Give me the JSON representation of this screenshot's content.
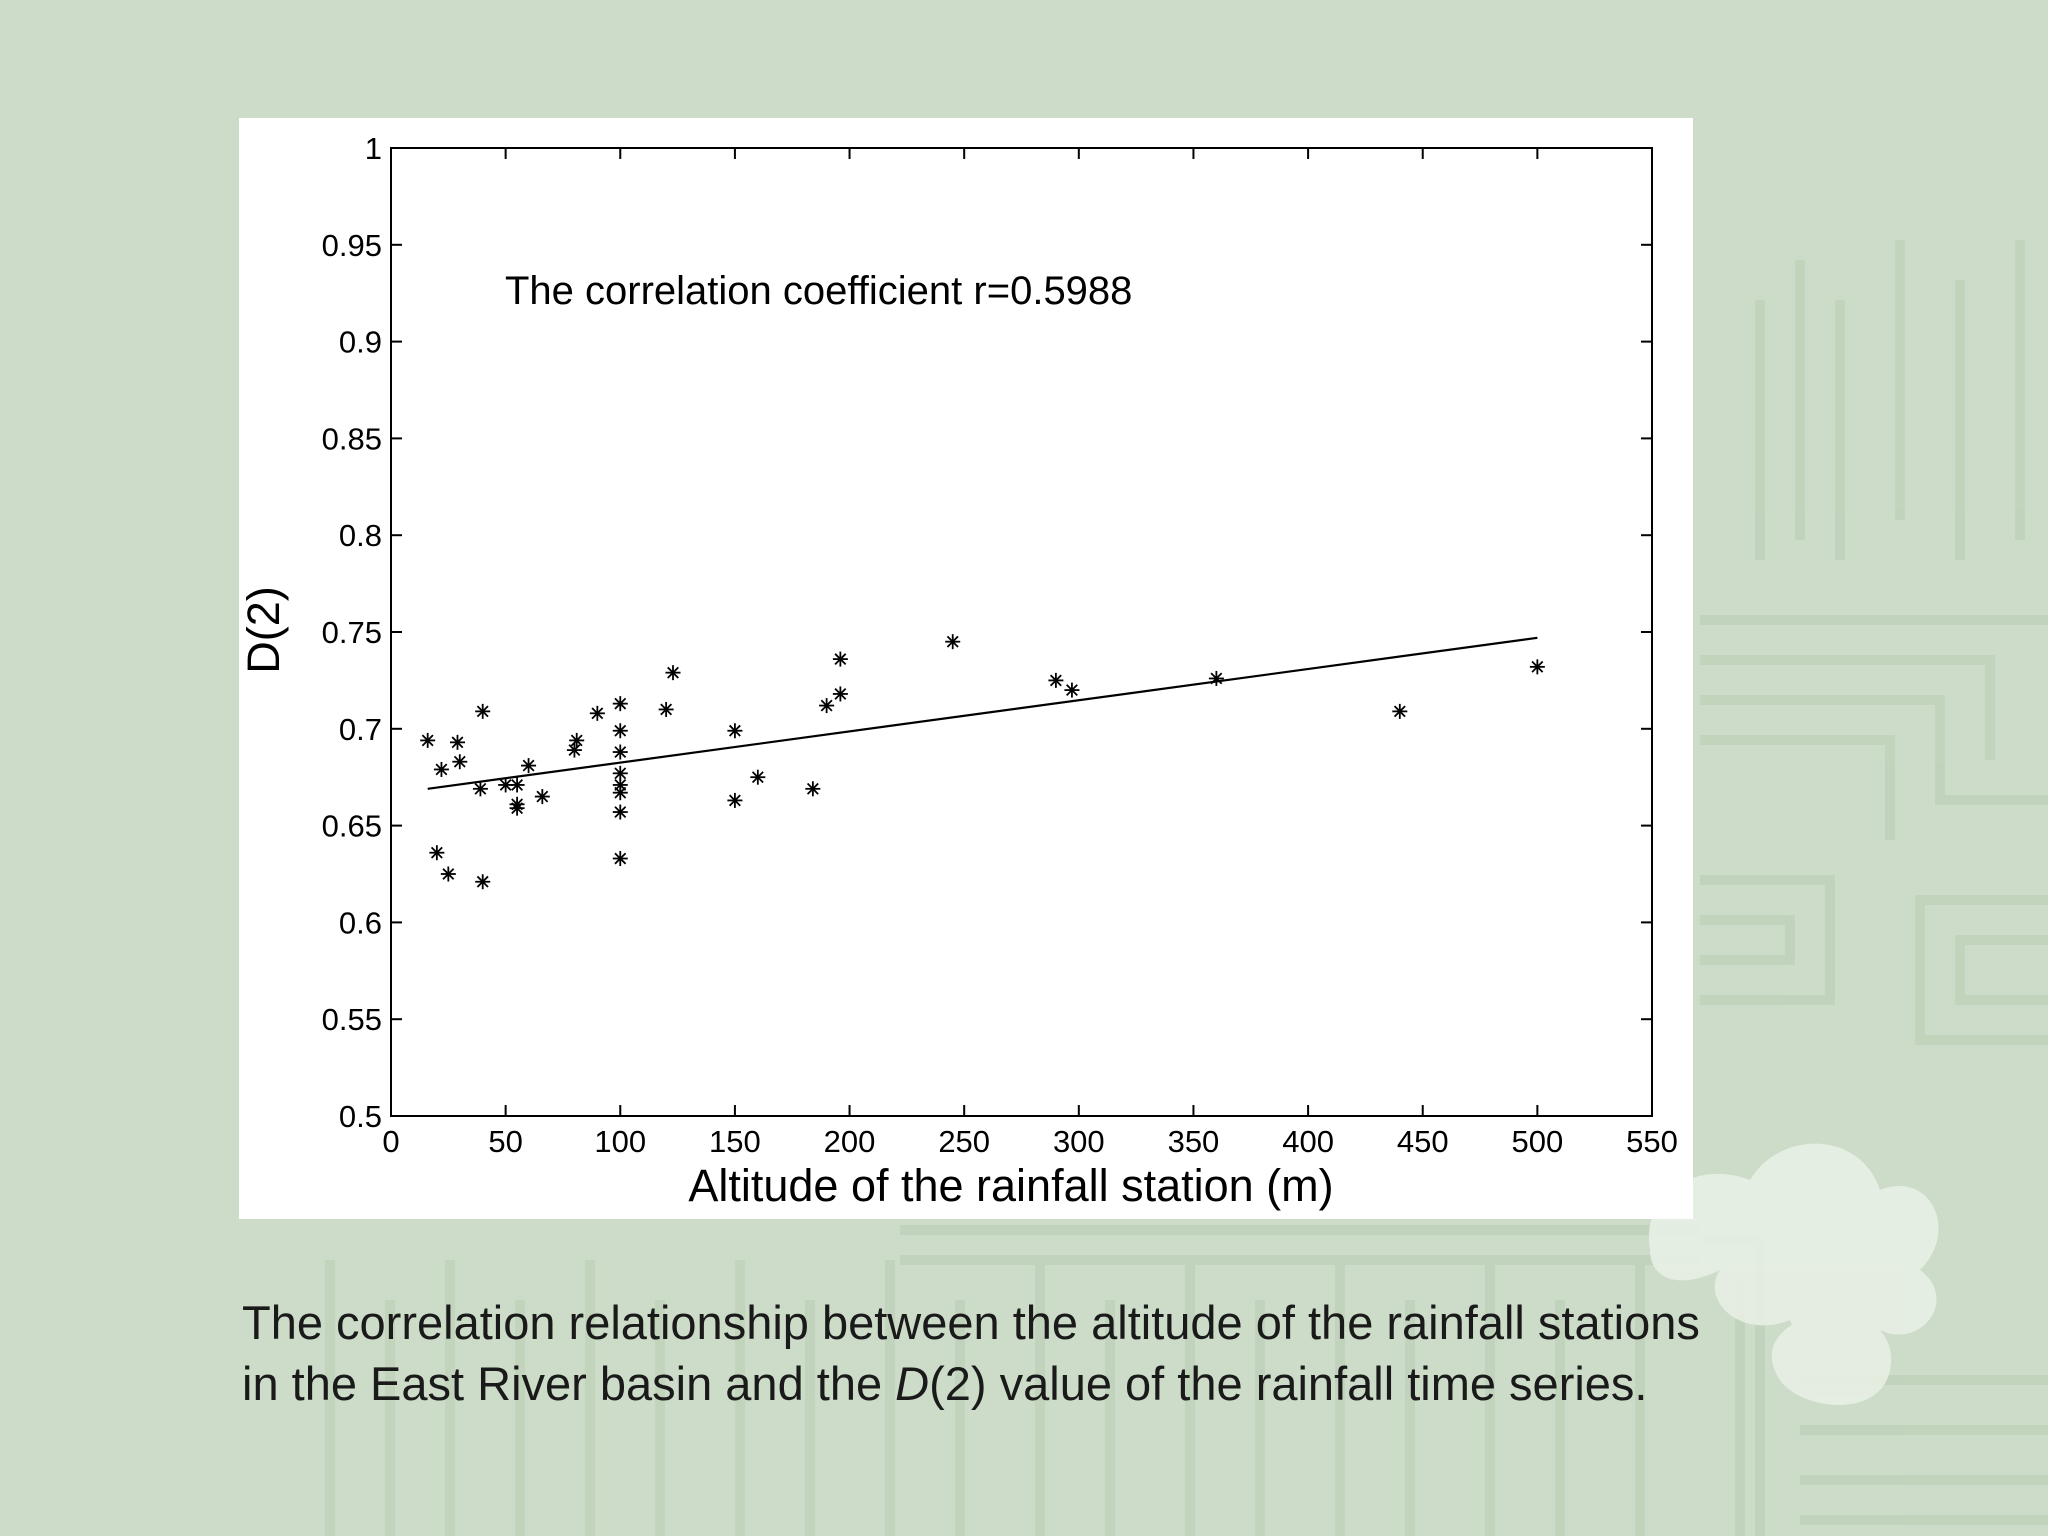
{
  "colors": {
    "slide_background": "#ccdcc8",
    "background_pattern": "#b9cdb3",
    "ornament": "#e8efe5",
    "panel": "#ffffff",
    "ink": "#000000",
    "caption_text": "#1a1a1a"
  },
  "caption": {
    "line1": "The correlation relationship between the altitude of the rainfall stations",
    "line2_before": "in the East River basin and the ",
    "line2_italic": "D",
    "line2_after": "(2) value of the rainfall time series."
  },
  "chart_data": {
    "type": "scatter",
    "xlabel": "Altitude of the rainfall station (m)",
    "ylabel": "D(2)",
    "annotation": "The correlation coefficient r=0.5988",
    "xlim": [
      0,
      550
    ],
    "ylim": [
      0.5,
      1
    ],
    "x_ticks": [
      0,
      50,
      100,
      150,
      200,
      250,
      300,
      350,
      400,
      450,
      500,
      550
    ],
    "y_ticks": [
      0.5,
      0.55,
      0.6,
      0.65,
      0.7,
      0.75,
      0.8,
      0.85,
      0.9,
      0.95,
      1
    ],
    "y_tick_labels": [
      "0.5",
      "0.55",
      "0.6",
      "0.65",
      "0.7",
      "0.75",
      "0.8",
      "0.85",
      "0.9",
      "0.95",
      "1"
    ],
    "grid": false,
    "marker": "asterisk",
    "points": [
      {
        "x": 16,
        "y": 0.694
      },
      {
        "x": 20,
        "y": 0.636
      },
      {
        "x": 22,
        "y": 0.679
      },
      {
        "x": 25,
        "y": 0.625
      },
      {
        "x": 29,
        "y": 0.693
      },
      {
        "x": 30,
        "y": 0.683
      },
      {
        "x": 39,
        "y": 0.669
      },
      {
        "x": 40,
        "y": 0.709
      },
      {
        "x": 40,
        "y": 0.621
      },
      {
        "x": 50,
        "y": 0.671
      },
      {
        "x": 55,
        "y": 0.671
      },
      {
        "x": 55,
        "y": 0.661
      },
      {
        "x": 55,
        "y": 0.659
      },
      {
        "x": 60,
        "y": 0.681
      },
      {
        "x": 66,
        "y": 0.665
      },
      {
        "x": 80,
        "y": 0.689
      },
      {
        "x": 81,
        "y": 0.694
      },
      {
        "x": 90,
        "y": 0.708
      },
      {
        "x": 100,
        "y": 0.713
      },
      {
        "x": 100,
        "y": 0.699
      },
      {
        "x": 100,
        "y": 0.688
      },
      {
        "x": 100,
        "y": 0.677
      },
      {
        "x": 100,
        "y": 0.671
      },
      {
        "x": 100,
        "y": 0.667
      },
      {
        "x": 100,
        "y": 0.657
      },
      {
        "x": 100,
        "y": 0.633
      },
      {
        "x": 120,
        "y": 0.71
      },
      {
        "x": 123,
        "y": 0.729
      },
      {
        "x": 150,
        "y": 0.699
      },
      {
        "x": 150,
        "y": 0.663
      },
      {
        "x": 160,
        "y": 0.675
      },
      {
        "x": 184,
        "y": 0.669
      },
      {
        "x": 190,
        "y": 0.712
      },
      {
        "x": 196,
        "y": 0.736
      },
      {
        "x": 196,
        "y": 0.718
      },
      {
        "x": 245,
        "y": 0.745
      },
      {
        "x": 290,
        "y": 0.725
      },
      {
        "x": 297,
        "y": 0.72
      },
      {
        "x": 360,
        "y": 0.726
      },
      {
        "x": 440,
        "y": 0.709
      },
      {
        "x": 500,
        "y": 0.732
      }
    ],
    "fit_line": {
      "x": [
        16,
        500
      ],
      "y": [
        0.669,
        0.747
      ]
    }
  }
}
